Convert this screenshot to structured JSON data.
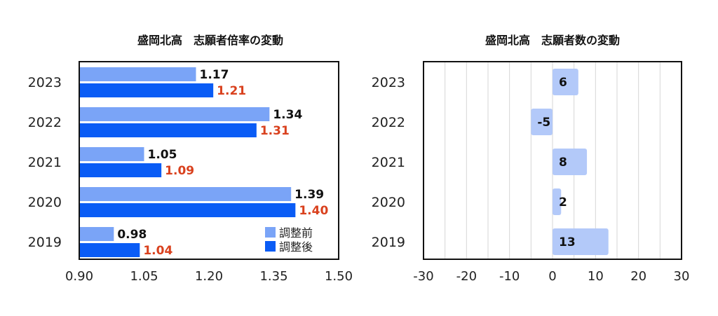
{
  "chart_data": [
    {
      "type": "bar",
      "orientation": "horizontal",
      "title": "盛岡北高　志願者倍率の変動",
      "categories": [
        "2023",
        "2022",
        "2021",
        "2020",
        "2019"
      ],
      "series": [
        {
          "name": "調整前",
          "color": "#7aa4f7",
          "label_color": "#111111",
          "values": [
            1.17,
            1.34,
            1.05,
            1.39,
            0.98
          ],
          "labels": [
            "1.17",
            "1.34",
            "1.05",
            "1.39",
            "0.98"
          ]
        },
        {
          "name": "調整後",
          "color": "#0a5cf5",
          "label_color": "#d9411e",
          "values": [
            1.21,
            1.31,
            1.09,
            1.4,
            1.04
          ],
          "labels": [
            "1.21",
            "1.31",
            "1.09",
            "1.40",
            "1.04"
          ]
        }
      ],
      "xlim": [
        0.9,
        1.5
      ],
      "xticks": [
        "0.90",
        "1.05",
        "1.20",
        "1.35",
        "1.50"
      ],
      "legend": "bottom-right",
      "grid": false
    },
    {
      "type": "bar",
      "orientation": "horizontal",
      "title": "盛岡北高　志願者数の変動",
      "categories": [
        "2023",
        "2022",
        "2021",
        "2020",
        "2019"
      ],
      "series": [
        {
          "color": "#b3c9f9",
          "values": [
            6,
            -5,
            8,
            2,
            13
          ],
          "labels": [
            "6",
            "-5",
            "8",
            "2",
            "13"
          ]
        }
      ],
      "xlim": [
        -30,
        30
      ],
      "xticks": [
        "-30",
        "-20",
        "-10",
        "0",
        "10",
        "20",
        "30"
      ],
      "grid": true
    }
  ]
}
